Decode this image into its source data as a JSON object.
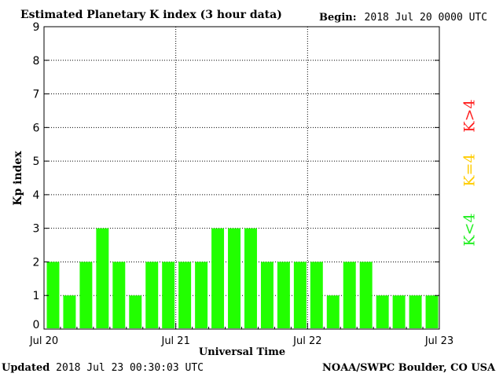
{
  "header": {
    "title": "Estimated Planetary K index (3 hour data)",
    "begin_label": "Begin:",
    "begin_value": "2018 Jul 20 0000 UTC"
  },
  "footer": {
    "updated_label": "Updated",
    "updated_value": "2018 Jul 23 00:30:03 UTC",
    "source": "NOAA/SWPC Boulder, CO USA"
  },
  "legend": {
    "greater": {
      "text": "K>4",
      "color": "#ff2020"
    },
    "equal": {
      "text": "K=4",
      "color": "#ffcc00"
    },
    "less": {
      "text": "K<4",
      "color": "#22ee22"
    }
  },
  "chart_data": {
    "type": "bar",
    "title": "Estimated Planetary K index (3 hour data)",
    "xlabel": "Universal Time",
    "ylabel": "Kp index",
    "ylim": [
      0,
      9
    ],
    "yticks": [
      0,
      1,
      2,
      3,
      4,
      5,
      6,
      7,
      8,
      9
    ],
    "xtick_labels": [
      "Jul 20",
      "Jul 21",
      "Jul 22",
      "Jul 23"
    ],
    "grid": true,
    "bar_color": "#22ff00",
    "values": [
      2,
      1,
      2,
      3,
      2,
      1,
      2,
      2,
      2,
      2,
      3,
      3,
      3,
      2,
      2,
      2,
      2,
      1,
      2,
      2,
      1,
      1,
      1,
      1
    ]
  }
}
